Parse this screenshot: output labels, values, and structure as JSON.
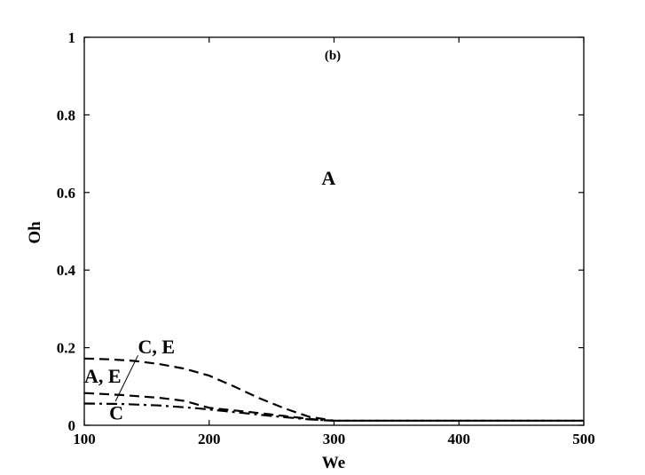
{
  "chart_data": {
    "type": "line",
    "title": "",
    "panel_label": "(b)",
    "xlabel": "We",
    "ylabel": "Oh",
    "xlim": [
      100,
      500
    ],
    "ylim": [
      0,
      1
    ],
    "xticks": [
      100,
      200,
      300,
      400,
      500
    ],
    "yticks": [
      0,
      0.2,
      0.4,
      0.6,
      0.8,
      1
    ],
    "ytick_labels": [
      "0",
      "0.2",
      "0.4",
      "0.6",
      "0.8",
      "1"
    ],
    "grid": false,
    "series": [
      {
        "style": "dashed",
        "x": [
          100,
          120,
          140,
          160,
          180,
          200,
          220,
          240,
          260,
          280,
          300,
          350,
          400,
          450,
          500
        ],
        "y": [
          0.172,
          0.17,
          0.166,
          0.158,
          0.146,
          0.128,
          0.1,
          0.07,
          0.044,
          0.022,
          0.012,
          0.012,
          0.012,
          0.012,
          0.012
        ]
      },
      {
        "style": "dashed",
        "x": [
          100,
          130,
          160,
          180,
          200,
          230,
          260,
          290,
          300,
          350,
          400,
          450,
          500
        ],
        "y": [
          0.083,
          0.078,
          0.071,
          0.063,
          0.045,
          0.035,
          0.024,
          0.013,
          0.012,
          0.012,
          0.012,
          0.012,
          0.012
        ]
      },
      {
        "style": "dash-dot",
        "x": [
          100,
          130,
          160,
          190,
          220,
          250,
          280,
          300
        ],
        "y": [
          0.056,
          0.055,
          0.051,
          0.044,
          0.034,
          0.024,
          0.015,
          0.012
        ]
      }
    ],
    "annotations": [
      {
        "text": "A",
        "x": 290,
        "y": 0.62
      },
      {
        "text": "C, E",
        "x": 143,
        "y": 0.185
      },
      {
        "text": "A, E",
        "x": 100,
        "y": 0.11
      },
      {
        "text": "C",
        "x": 120,
        "y": 0.015
      }
    ],
    "leader_line": {
      "from": [
        143,
        0.18
      ],
      "to": [
        125,
        0.062
      ]
    }
  }
}
